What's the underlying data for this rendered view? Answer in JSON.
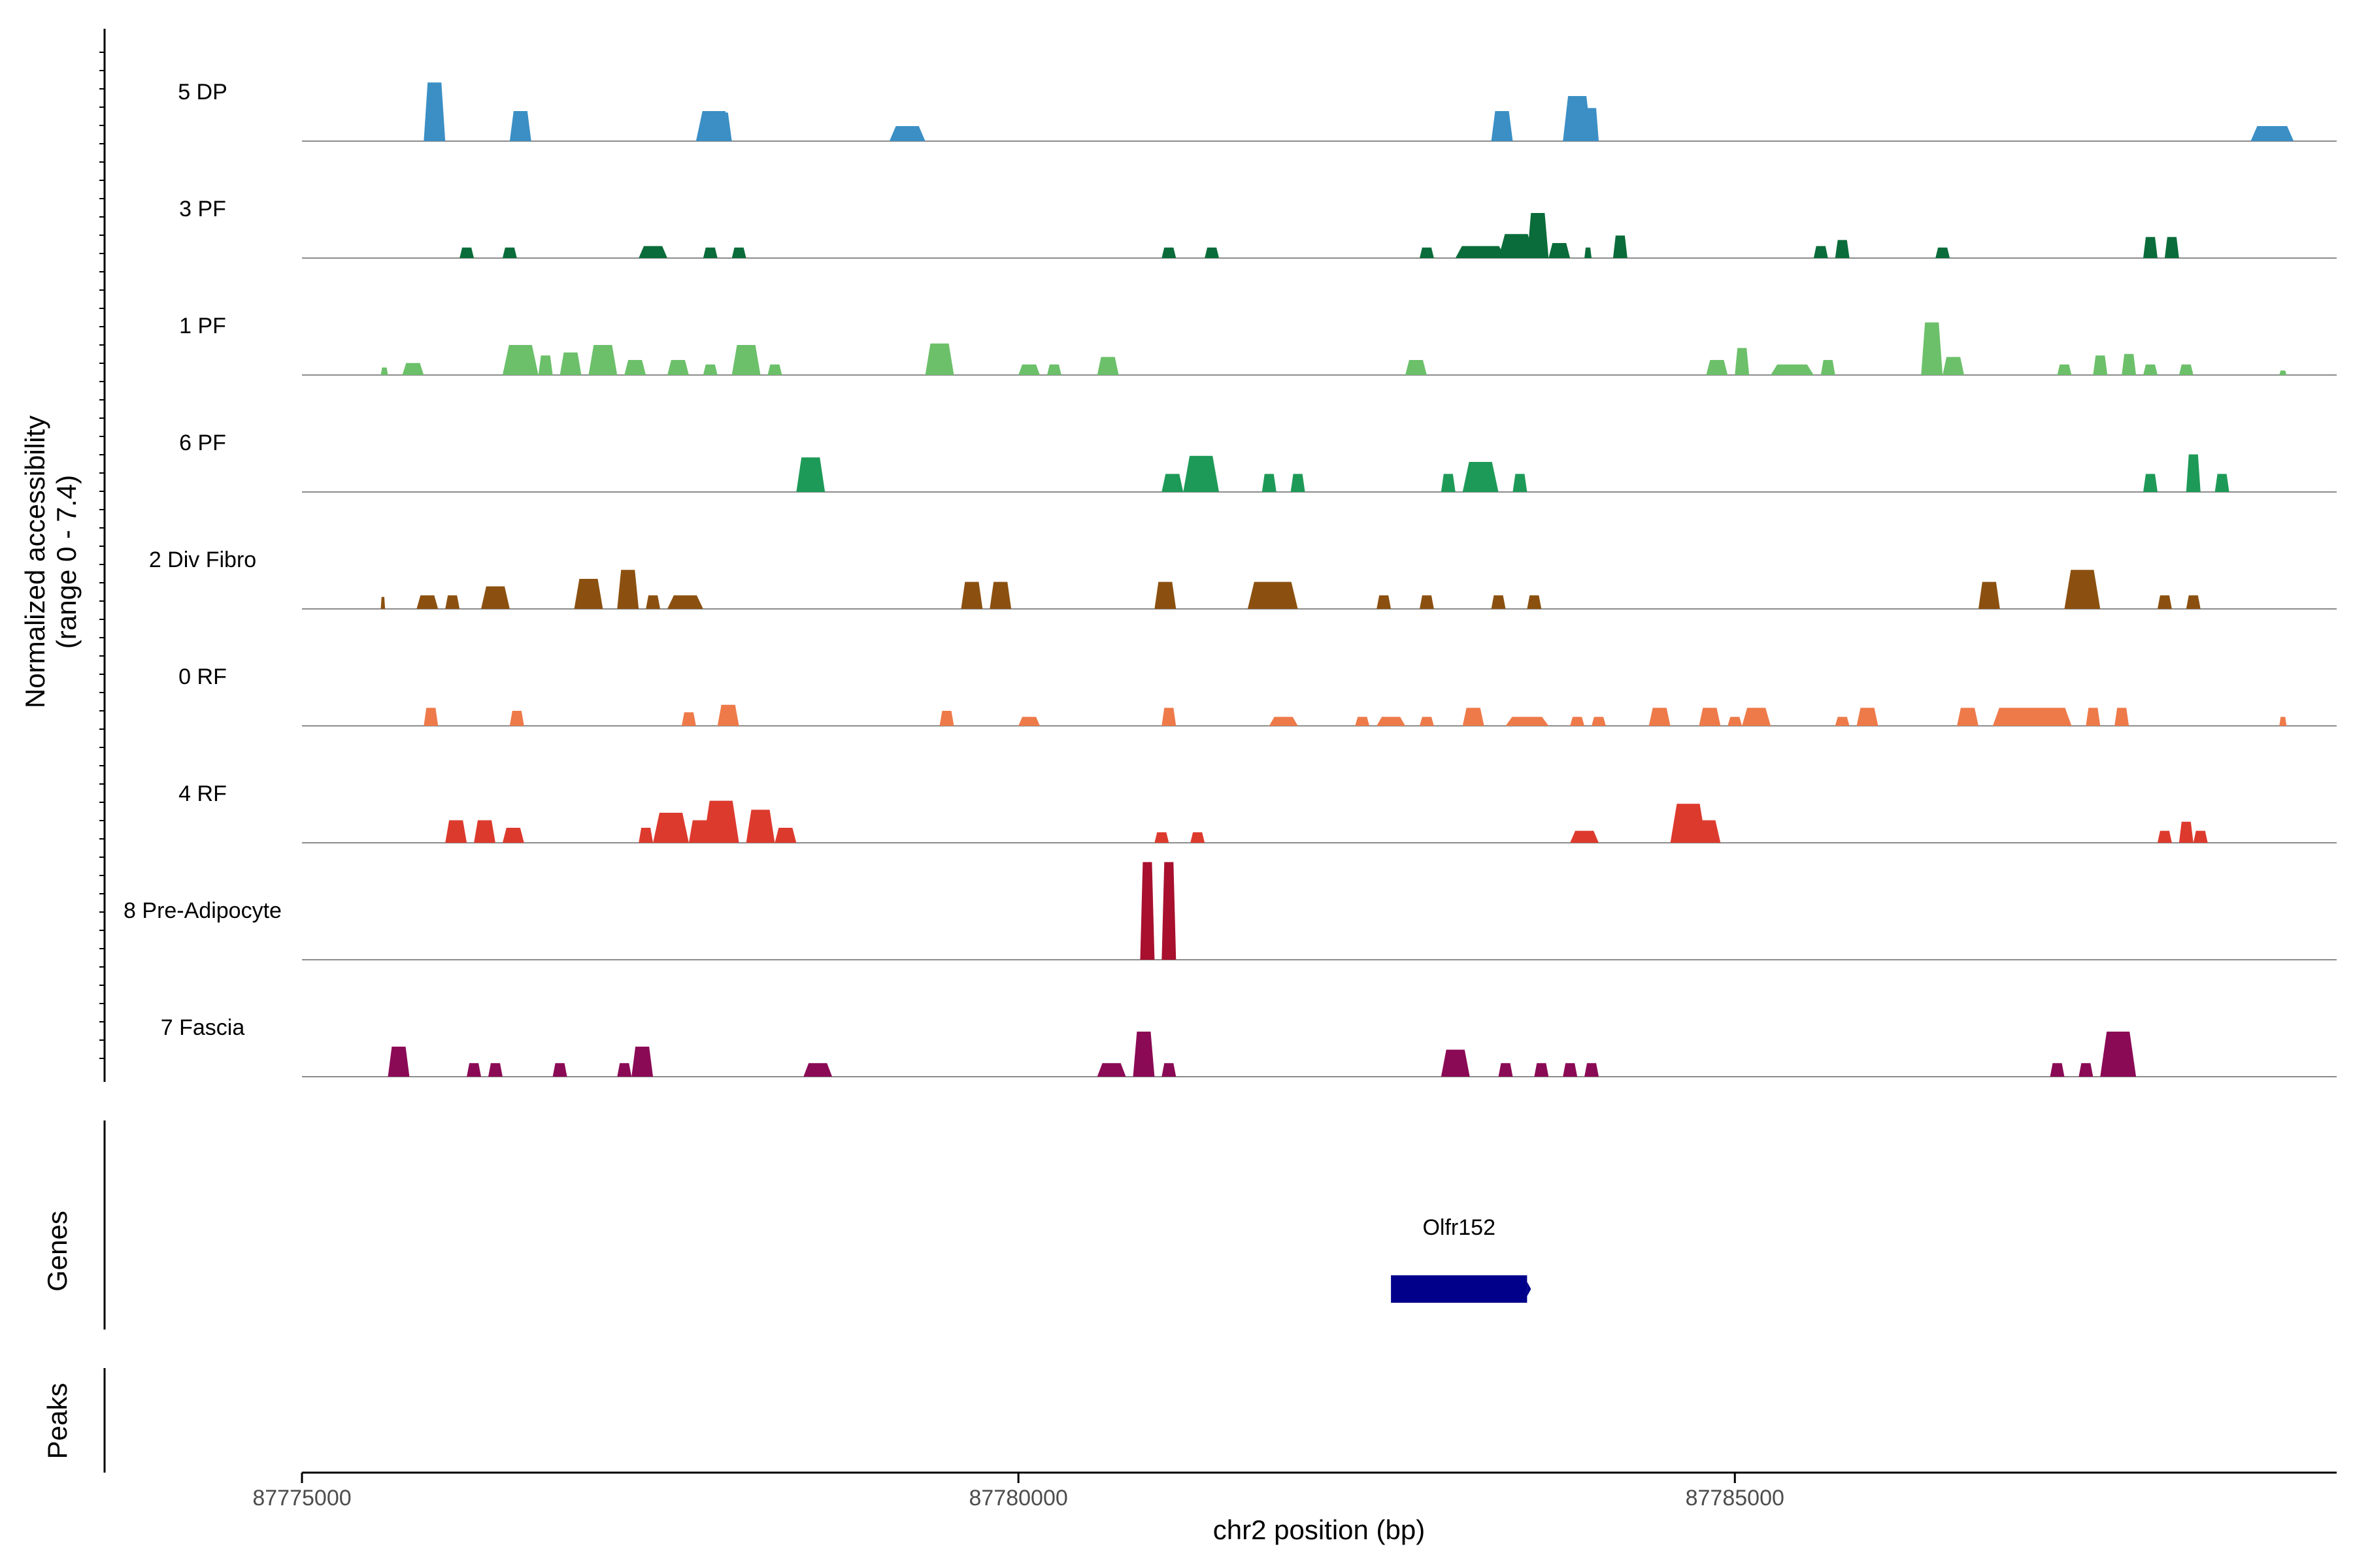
{
  "chart_data": {
    "type": "coverage",
    "y_axis_label_line1": "Normalized accessibility",
    "y_axis_label_line2": "(range 0 - 7.4)",
    "x_axis_label": "chr2 position (bp)",
    "x_range": [
      87775000,
      87789200
    ],
    "x_ticks": [
      87775000,
      87780000,
      87785000
    ],
    "x_tick_labels": [
      "87775000",
      "87780000",
      "87785000"
    ],
    "y_range": [
      0,
      7.4
    ],
    "genes_label": "Genes",
    "peaks_label": "Peaks",
    "genes": [
      {
        "name": "Olfr152",
        "start": 87782600,
        "end": 87783550,
        "color": "#00008B"
      }
    ],
    "tracks": [
      {
        "name": "5 DP",
        "color": "#3B8FC5",
        "peaks": [
          [
            87775850,
            87776000,
            3.9
          ],
          [
            87776450,
            87776600,
            2.0
          ],
          [
            87777750,
            87778000,
            2.0
          ],
          [
            87777850,
            87778000,
            1.9
          ],
          [
            87779100,
            87779350,
            1.0
          ],
          [
            87783300,
            87783450,
            2.0
          ],
          [
            87783800,
            87784000,
            3.0
          ],
          [
            87783950,
            87784050,
            2.2
          ],
          [
            87788600,
            87788900,
            1.0
          ]
        ]
      },
      {
        "name": "3 PF",
        "color": "#0A6C3A",
        "peaks": [
          [
            87776100,
            87776200,
            0.7
          ],
          [
            87776400,
            87776500,
            0.7
          ],
          [
            87777350,
            87777550,
            0.8
          ],
          [
            87777800,
            87777900,
            0.7
          ],
          [
            87778000,
            87778100,
            0.7
          ],
          [
            87781000,
            87781100,
            0.7
          ],
          [
            87781300,
            87781400,
            0.7
          ],
          [
            87782800,
            87782900,
            0.7
          ],
          [
            87783050,
            87783400,
            0.8
          ],
          [
            87783350,
            87783600,
            1.6
          ],
          [
            87783550,
            87783700,
            3.0
          ],
          [
            87783700,
            87783850,
            1.0
          ],
          [
            87783950,
            87784000,
            0.7
          ],
          [
            87784150,
            87784250,
            1.5
          ],
          [
            87785550,
            87785650,
            0.8
          ],
          [
            87785700,
            87785800,
            1.2
          ],
          [
            87786400,
            87786500,
            0.7
          ],
          [
            87787850,
            87787950,
            1.4
          ],
          [
            87788000,
            87788100,
            1.4
          ]
        ]
      },
      {
        "name": "1 PF",
        "color": "#6CC06A",
        "peaks": [
          [
            87775550,
            87775600,
            0.5
          ],
          [
            87775700,
            87775850,
            0.8
          ],
          [
            87776400,
            87776650,
            2.0
          ],
          [
            87776650,
            87776750,
            1.3
          ],
          [
            87776800,
            87776950,
            1.5
          ],
          [
            87777000,
            87777200,
            2.0
          ],
          [
            87777250,
            87777400,
            1.0
          ],
          [
            87777550,
            87777700,
            1.0
          ],
          [
            87777800,
            87777900,
            0.7
          ],
          [
            87778000,
            87778200,
            2.0
          ],
          [
            87778250,
            87778350,
            0.7
          ],
          [
            87779350,
            87779550,
            2.1
          ],
          [
            87780000,
            87780150,
            0.7
          ],
          [
            87780200,
            87780300,
            0.7
          ],
          [
            87780550,
            87780700,
            1.2
          ],
          [
            87782700,
            87782850,
            1.0
          ],
          [
            87784800,
            87784950,
            1.0
          ],
          [
            87785000,
            87785100,
            1.8
          ],
          [
            87785250,
            87785550,
            0.7
          ],
          [
            87785600,
            87785700,
            1.0
          ],
          [
            87786300,
            87786450,
            3.5
          ],
          [
            87786450,
            87786600,
            1.2
          ],
          [
            87787250,
            87787350,
            0.7
          ],
          [
            87787500,
            87787600,
            1.3
          ],
          [
            87787700,
            87787800,
            1.4
          ],
          [
            87787850,
            87787950,
            0.7
          ],
          [
            87788100,
            87788200,
            0.7
          ],
          [
            87788800,
            87788850,
            0.3
          ]
        ]
      },
      {
        "name": "6 PF",
        "color": "#1E9A58",
        "peaks": [
          [
            87778450,
            87778650,
            2.3
          ],
          [
            87781000,
            87781150,
            1.2
          ],
          [
            87781150,
            87781400,
            2.4
          ],
          [
            87781700,
            87781800,
            1.2
          ],
          [
            87781900,
            87782000,
            1.2
          ],
          [
            87782950,
            87783050,
            1.2
          ],
          [
            87783100,
            87783350,
            2.0
          ],
          [
            87783450,
            87783550,
            1.2
          ],
          [
            87787850,
            87787950,
            1.2
          ],
          [
            87788150,
            87788250,
            2.5
          ],
          [
            87788350,
            87788450,
            1.2
          ]
        ]
      },
      {
        "name": "2 Div Fibro",
        "color": "#8B5010",
        "peaks": [
          [
            87775550,
            87775580,
            0.8
          ],
          [
            87775800,
            87775950,
            0.9
          ],
          [
            87776000,
            87776100,
            0.9
          ],
          [
            87776250,
            87776450,
            1.5
          ],
          [
            87776900,
            87777100,
            2.0
          ],
          [
            87777200,
            87777350,
            2.6
          ],
          [
            87777400,
            87777500,
            0.9
          ],
          [
            87777550,
            87777800,
            0.9
          ],
          [
            87779600,
            87779750,
            1.8
          ],
          [
            87779800,
            87779950,
            1.8
          ],
          [
            87780950,
            87781100,
            1.8
          ],
          [
            87781600,
            87781950,
            1.8
          ],
          [
            87782500,
            87782600,
            0.9
          ],
          [
            87782800,
            87782900,
            0.9
          ],
          [
            87783300,
            87783400,
            0.9
          ],
          [
            87783550,
            87783650,
            0.9
          ],
          [
            87786700,
            87786850,
            1.8
          ],
          [
            87787300,
            87787550,
            2.6
          ],
          [
            87787950,
            87788050,
            0.9
          ],
          [
            87788150,
            87788250,
            0.9
          ]
        ]
      },
      {
        "name": "0 RF",
        "color": "#EE7A4A",
        "peaks": [
          [
            87775850,
            87775950,
            1.2
          ],
          [
            87776450,
            87776550,
            1.0
          ],
          [
            87777650,
            87777750,
            0.9
          ],
          [
            87777900,
            87778050,
            1.4
          ],
          [
            87779450,
            87779550,
            1.0
          ],
          [
            87780000,
            87780150,
            0.6
          ],
          [
            87781000,
            87781100,
            1.2
          ],
          [
            87781750,
            87781950,
            0.6
          ],
          [
            87782350,
            87782450,
            0.6
          ],
          [
            87782500,
            87782700,
            0.6
          ],
          [
            87782800,
            87782900,
            0.6
          ],
          [
            87783100,
            87783250,
            1.2
          ],
          [
            87783400,
            87783700,
            0.6
          ],
          [
            87783850,
            87783950,
            0.6
          ],
          [
            87784000,
            87784100,
            0.6
          ],
          [
            87784400,
            87784550,
            1.2
          ],
          [
            87784750,
            87784900,
            1.2
          ],
          [
            87784950,
            87785050,
            0.6
          ],
          [
            87785050,
            87785250,
            1.2
          ],
          [
            87785700,
            87785800,
            0.6
          ],
          [
            87785850,
            87786000,
            1.2
          ],
          [
            87786550,
            87786700,
            1.2
          ],
          [
            87786800,
            87787350,
            1.2
          ],
          [
            87787450,
            87787550,
            1.2
          ],
          [
            87787650,
            87787750,
            1.2
          ],
          [
            87788800,
            87788850,
            0.6
          ]
        ]
      },
      {
        "name": "4 RF",
        "color": "#DD3A2E",
        "peaks": [
          [
            87776000,
            87776150,
            1.5
          ],
          [
            87776200,
            87776350,
            1.5
          ],
          [
            87776400,
            87776550,
            1.0
          ],
          [
            87777350,
            87777450,
            1.0
          ],
          [
            87777450,
            87777700,
            2.0
          ],
          [
            87777700,
            87777850,
            1.5
          ],
          [
            87777800,
            87778050,
            2.8
          ],
          [
            87778100,
            87778300,
            2.2
          ],
          [
            87778300,
            87778450,
            1.0
          ],
          [
            87780950,
            87781050,
            0.7
          ],
          [
            87781200,
            87781300,
            0.7
          ],
          [
            87783850,
            87784050,
            0.8
          ],
          [
            87784550,
            87784800,
            2.6
          ],
          [
            87784700,
            87784900,
            1.5
          ],
          [
            87787950,
            87788050,
            0.8
          ],
          [
            87788100,
            87788200,
            1.4
          ],
          [
            87788200,
            87788300,
            0.8
          ]
        ]
      },
      {
        "name": "8 Pre-Adipocyte",
        "color": "#A8102E",
        "peaks": [
          [
            87780850,
            87780950,
            6.5
          ],
          [
            87781000,
            87781100,
            6.5
          ]
        ]
      },
      {
        "name": "7 Fascia",
        "color": "#8B0A55",
        "peaks": [
          [
            87775600,
            87775750,
            2.0
          ],
          [
            87776150,
            87776250,
            0.9
          ],
          [
            87776300,
            87776400,
            0.9
          ],
          [
            87776750,
            87776850,
            0.9
          ],
          [
            87777200,
            87777300,
            0.9
          ],
          [
            87777300,
            87777450,
            2.0
          ],
          [
            87778500,
            87778700,
            0.9
          ],
          [
            87780550,
            87780750,
            0.9
          ],
          [
            87780800,
            87780950,
            3.0
          ],
          [
            87781000,
            87781100,
            0.9
          ],
          [
            87782950,
            87783150,
            1.8
          ],
          [
            87783350,
            87783450,
            0.9
          ],
          [
            87783600,
            87783700,
            0.9
          ],
          [
            87783800,
            87783900,
            0.9
          ],
          [
            87783950,
            87784050,
            0.9
          ],
          [
            87787200,
            87787300,
            0.9
          ],
          [
            87787400,
            87787500,
            0.9
          ],
          [
            87787550,
            87787800,
            3.0
          ]
        ]
      }
    ]
  }
}
